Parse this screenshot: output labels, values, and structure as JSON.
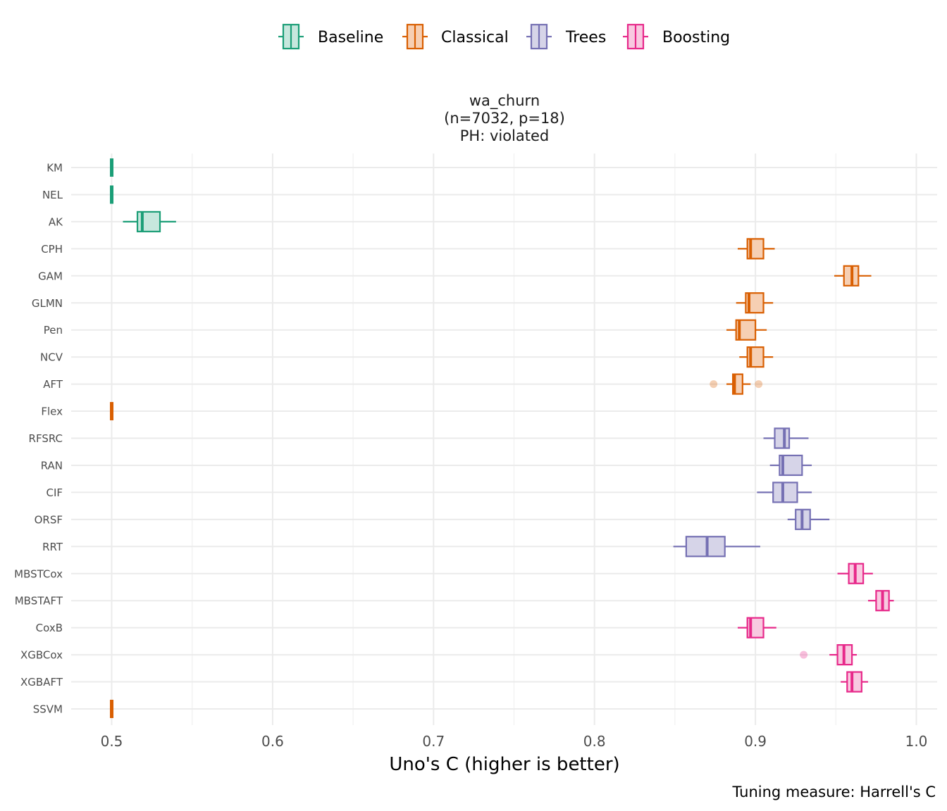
{
  "chart_data": {
    "type": "boxplot",
    "title": "wa_churn",
    "subtitle_lines": [
      "(n=7032, p=18)",
      "PH: violated"
    ],
    "xlabel": "Uno's C (higher is better)",
    "ylabel": "",
    "caption": "Tuning measure: Harrell's C",
    "xlim": [
      0.475,
      1.0
    ],
    "xticks": [
      0.5,
      0.6,
      0.7,
      0.8,
      0.9,
      1.0
    ],
    "xtick_labels": [
      "0.5",
      "0.6",
      "0.7",
      "0.8",
      "0.9",
      "1.0"
    ],
    "grid": true,
    "legend_position": "top",
    "groups": [
      {
        "name": "Baseline",
        "color": "#1b9e77",
        "fill": "#c6e7dd"
      },
      {
        "name": "Classical",
        "color": "#d95f02",
        "fill": "#f6cfb3"
      },
      {
        "name": "Trees",
        "color": "#7570b3",
        "fill": "#d6d4e8"
      },
      {
        "name": "Boosting",
        "color": "#e7298a",
        "fill": "#f8c9e0"
      }
    ],
    "models": [
      {
        "name": "KM",
        "group": "Baseline",
        "min": 0.5,
        "q1": 0.5,
        "median": 0.5,
        "q3": 0.5,
        "max": 0.5,
        "outliers": []
      },
      {
        "name": "NEL",
        "group": "Baseline",
        "min": 0.5,
        "q1": 0.5,
        "median": 0.5,
        "q3": 0.5,
        "max": 0.5,
        "outliers": []
      },
      {
        "name": "AK",
        "group": "Baseline",
        "min": 0.507,
        "q1": 0.516,
        "median": 0.519,
        "q3": 0.53,
        "max": 0.54,
        "outliers": []
      },
      {
        "name": "CPH",
        "group": "Classical",
        "min": 0.889,
        "q1": 0.895,
        "median": 0.897,
        "q3": 0.905,
        "max": 0.912,
        "outliers": []
      },
      {
        "name": "GAM",
        "group": "Classical",
        "min": 0.949,
        "q1": 0.955,
        "median": 0.96,
        "q3": 0.964,
        "max": 0.972,
        "outliers": []
      },
      {
        "name": "GLMN",
        "group": "Classical",
        "min": 0.888,
        "q1": 0.894,
        "median": 0.896,
        "q3": 0.905,
        "max": 0.911,
        "outliers": []
      },
      {
        "name": "Pen",
        "group": "Classical",
        "min": 0.882,
        "q1": 0.888,
        "median": 0.89,
        "q3": 0.9,
        "max": 0.907,
        "outliers": []
      },
      {
        "name": "NCV",
        "group": "Classical",
        "min": 0.89,
        "q1": 0.895,
        "median": 0.897,
        "q3": 0.905,
        "max": 0.911,
        "outliers": []
      },
      {
        "name": "AFT",
        "group": "Classical",
        "min": 0.882,
        "q1": 0.886,
        "median": 0.887,
        "q3": 0.892,
        "max": 0.897,
        "outliers": [
          0.874,
          0.902
        ]
      },
      {
        "name": "Flex",
        "group": "Classical",
        "min": 0.5,
        "q1": 0.5,
        "median": 0.5,
        "q3": 0.5,
        "max": 0.5,
        "outliers": []
      },
      {
        "name": "RFSRC",
        "group": "Trees",
        "min": 0.905,
        "q1": 0.912,
        "median": 0.918,
        "q3": 0.921,
        "max": 0.933,
        "outliers": []
      },
      {
        "name": "RAN",
        "group": "Trees",
        "min": 0.909,
        "q1": 0.915,
        "median": 0.917,
        "q3": 0.929,
        "max": 0.935,
        "outliers": []
      },
      {
        "name": "CIF",
        "group": "Trees",
        "min": 0.901,
        "q1": 0.911,
        "median": 0.917,
        "q3": 0.926,
        "max": 0.935,
        "outliers": []
      },
      {
        "name": "ORSF",
        "group": "Trees",
        "min": 0.92,
        "q1": 0.925,
        "median": 0.929,
        "q3": 0.934,
        "max": 0.946,
        "outliers": []
      },
      {
        "name": "RRT",
        "group": "Trees",
        "min": 0.849,
        "q1": 0.857,
        "median": 0.87,
        "q3": 0.881,
        "max": 0.903,
        "outliers": []
      },
      {
        "name": "MBSTCox",
        "group": "Boosting",
        "min": 0.951,
        "q1": 0.958,
        "median": 0.962,
        "q3": 0.967,
        "max": 0.973,
        "outliers": []
      },
      {
        "name": "MBSTAFT",
        "group": "Boosting",
        "min": 0.97,
        "q1": 0.975,
        "median": 0.979,
        "q3": 0.983,
        "max": 0.986,
        "outliers": []
      },
      {
        "name": "CoxB",
        "group": "Boosting",
        "min": 0.889,
        "q1": 0.895,
        "median": 0.897,
        "q3": 0.905,
        "max": 0.913,
        "outliers": []
      },
      {
        "name": "XGBCox",
        "group": "Boosting",
        "min": 0.946,
        "q1": 0.951,
        "median": 0.955,
        "q3": 0.96,
        "max": 0.963,
        "outliers": [
          0.93
        ]
      },
      {
        "name": "XGBAFT",
        "group": "Boosting",
        "min": 0.953,
        "q1": 0.957,
        "median": 0.96,
        "q3": 0.966,
        "max": 0.97,
        "outliers": []
      },
      {
        "name": "SSVM",
        "group": "Classical",
        "min": 0.5,
        "q1": 0.5,
        "median": 0.5,
        "q3": 0.5,
        "max": 0.5,
        "outliers": []
      }
    ]
  }
}
